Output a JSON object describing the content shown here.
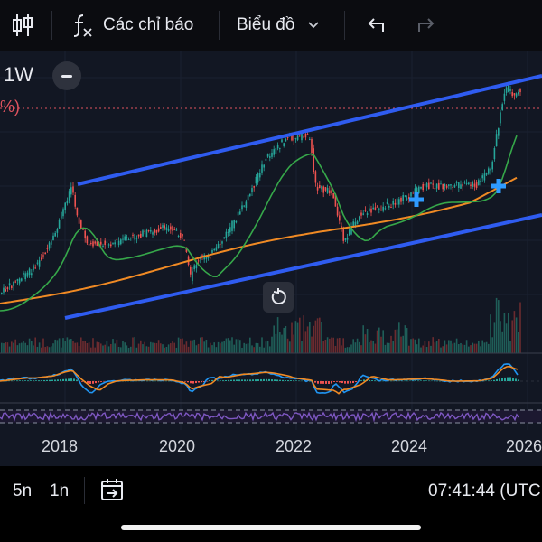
{
  "toolbar": {
    "indicators_label": "Các chỉ báo",
    "chart_type_label": "Biểu đồ"
  },
  "chart": {
    "interval": "1W",
    "change_label": "%)",
    "time_axis": [
      "2018",
      "2020",
      "2022",
      "2024",
      "2026"
    ]
  },
  "bottom": {
    "range_5y": "5n",
    "range_1y": "1n",
    "clock": "07:41:44 (UTC"
  },
  "colors": {
    "channel": "#2f5cf0",
    "ma_green": "#36a84a",
    "ma_orange": "#f08a24",
    "up": "#26a69a",
    "down": "#ef5350",
    "rsi": "#7e57c2",
    "macd": "#2196f3"
  }
}
